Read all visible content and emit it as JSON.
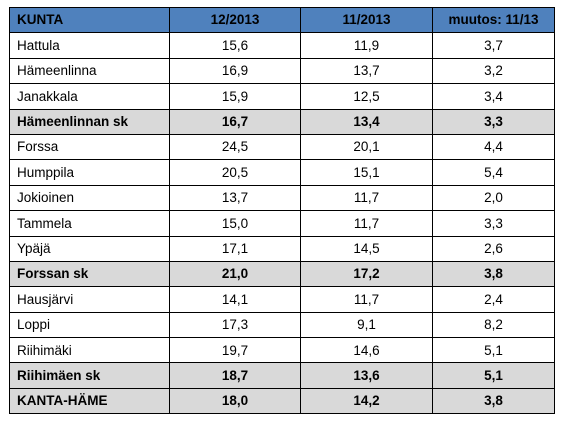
{
  "table": {
    "headers": [
      "KUNTA",
      "12/2013",
      "11/2013",
      "muutos: 11/13"
    ],
    "rows": [
      {
        "kunta": "Hattula",
        "v12": "15,6",
        "v11": "11,9",
        "muutos": "3,7",
        "total": false
      },
      {
        "kunta": "Hämeenlinna",
        "v12": "16,9",
        "v11": "13,7",
        "muutos": "3,2",
        "total": false
      },
      {
        "kunta": "Janakkala",
        "v12": "15,9",
        "v11": "12,5",
        "muutos": "3,4",
        "total": false
      },
      {
        "kunta": "Hämeenlinnan sk",
        "v12": "16,7",
        "v11": "13,4",
        "muutos": "3,3",
        "total": true
      },
      {
        "kunta": "Forssa",
        "v12": "24,5",
        "v11": "20,1",
        "muutos": "4,4",
        "total": false
      },
      {
        "kunta": "Humppila",
        "v12": "20,5",
        "v11": "15,1",
        "muutos": "5,4",
        "total": false
      },
      {
        "kunta": "Jokioinen",
        "v12": "13,7",
        "v11": "11,7",
        "muutos": "2,0",
        "total": false
      },
      {
        "kunta": "Tammela",
        "v12": "15,0",
        "v11": "11,7",
        "muutos": "3,3",
        "total": false
      },
      {
        "kunta": "Ypäjä",
        "v12": "17,1",
        "v11": "14,5",
        "muutos": "2,6",
        "total": false
      },
      {
        "kunta": "Forssan sk",
        "v12": "21,0",
        "v11": "17,2",
        "muutos": "3,8",
        "total": true
      },
      {
        "kunta": "Hausjärvi",
        "v12": "14,1",
        "v11": "11,7",
        "muutos": "2,4",
        "total": false
      },
      {
        "kunta": "Loppi",
        "v12": "17,3",
        "v11": "9,1",
        "muutos": "8,2",
        "total": false
      },
      {
        "kunta": "Riihimäki",
        "v12": "19,7",
        "v11": "14,6",
        "muutos": "5,1",
        "total": false
      },
      {
        "kunta": "Riihimäen sk",
        "v12": "18,7",
        "v11": "13,6",
        "muutos": "5,1",
        "total": true
      },
      {
        "kunta": "KANTA-HÄME",
        "v12": "18,0",
        "v11": "14,2",
        "muutos": "3,8",
        "total": true
      }
    ]
  },
  "colors": {
    "header_bg": "#4f81bd",
    "total_row_bg": "#d9d9d9",
    "border": "#000000"
  }
}
